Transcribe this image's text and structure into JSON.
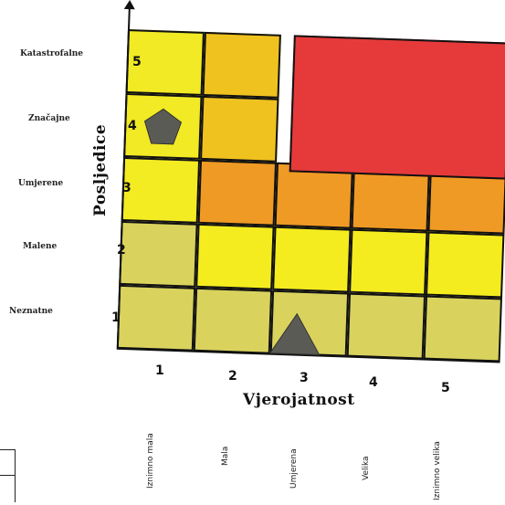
{
  "chart_data": {
    "type": "risk-matrix",
    "title": "",
    "xlabel": "Vjerojatnost",
    "ylabel": "Posljedice",
    "x_ticks": [
      "1",
      "2",
      "3",
      "4",
      "5"
    ],
    "y_ticks": [
      "1",
      "2",
      "3",
      "4",
      "5"
    ],
    "x_category_labels": [
      "Iznimno mala",
      "Mala",
      "Umjerena",
      "Velika",
      "Iznimno velika"
    ],
    "y_category_labels": [
      "Neznatne",
      "Malene",
      "Umjerene",
      "Značajne",
      "Katastrofalne"
    ],
    "cells": [
      {
        "x": 1,
        "y": 5,
        "color": "#f1ea24"
      },
      {
        "x": 2,
        "y": 5,
        "color": "#f0c21f"
      },
      {
        "x": 1,
        "y": 4,
        "color": "#f1ea24"
      },
      {
        "x": 2,
        "y": 4,
        "color": "#f0c21f"
      },
      {
        "x": 1,
        "y": 3,
        "color": "#f4ec22"
      },
      {
        "x": 2,
        "y": 3,
        "color": "#ef9a24"
      },
      {
        "x": 3,
        "y": 3,
        "color": "#ef9a24"
      },
      {
        "x": 4,
        "y": 3,
        "color": "#ef9a24"
      },
      {
        "x": 5,
        "y": 3,
        "color": "#ef9a24"
      },
      {
        "x": 1,
        "y": 2,
        "color": "#d9d35e"
      },
      {
        "x": 2,
        "y": 2,
        "color": "#f4ec1e"
      },
      {
        "x": 3,
        "y": 2,
        "color": "#f4ec1e"
      },
      {
        "x": 4,
        "y": 2,
        "color": "#f4ec1e"
      },
      {
        "x": 5,
        "y": 2,
        "color": "#f4ec1e"
      },
      {
        "x": 1,
        "y": 1,
        "color": "#d9d35e"
      },
      {
        "x": 2,
        "y": 1,
        "color": "#d9d35e"
      },
      {
        "x": 3,
        "y": 1,
        "color": "#d9d35e"
      },
      {
        "x": 4,
        "y": 1,
        "color": "#d9d35e"
      },
      {
        "x": 5,
        "y": 1,
        "color": "#d9d35e"
      }
    ],
    "red_zone": {
      "x_from": 3,
      "x_to": 5,
      "y_from": 4,
      "y_to": 5,
      "color": "#e63a3a"
    },
    "markers": [
      {
        "shape": "pentagon",
        "x": 1,
        "y": 4,
        "color": "#5b5b55"
      },
      {
        "shape": "triangle",
        "x": 3,
        "y": 1,
        "color": "#5b5b55"
      }
    ]
  }
}
